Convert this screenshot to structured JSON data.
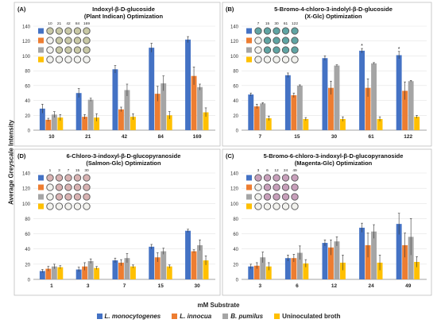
{
  "figure": {
    "ylabel": "Average Greyscale Intensity",
    "xlabel": "mM Substrate"
  },
  "legend": [
    {
      "name": "L. monocytogenes",
      "color": "#4472c4",
      "italic": true
    },
    {
      "name": "L. innocua",
      "color": "#ed7d31",
      "italic": true
    },
    {
      "name": "B. pumilus",
      "color": "#a5a5a5",
      "italic": true
    },
    {
      "name": "Uninoculated broth",
      "color": "#ffc000",
      "italic": false
    }
  ],
  "chart_data": [
    {
      "type": "bar",
      "panel": "(A)",
      "title": "Indoxyl-β-D-glucoside",
      "subtitle": "(Plant Indican) Optimization",
      "categories": [
        "10",
        "21",
        "42",
        "84",
        "169"
      ],
      "ylim": [
        0,
        140
      ],
      "yticks": [
        0,
        20,
        40,
        60,
        80,
        100,
        120,
        140
      ],
      "series": [
        {
          "name": "L. monocytogenes",
          "values": [
            29,
            50,
            82,
            111,
            122
          ],
          "errors": [
            6,
            6,
            5,
            6,
            4
          ]
        },
        {
          "name": "L. innocua",
          "values": [
            14,
            18,
            28,
            49,
            73
          ],
          "errors": [
            2,
            3,
            3,
            10,
            12
          ]
        },
        {
          "name": "B. pumilus",
          "values": [
            21,
            41,
            54,
            63,
            58
          ],
          "errors": [
            4,
            2,
            8,
            10,
            4
          ]
        },
        {
          "name": "Uninoculated broth",
          "values": [
            17,
            17,
            18,
            20,
            24
          ],
          "errors": [
            4,
            5,
            4,
            5,
            6
          ]
        }
      ],
      "well_labels": [
        "10",
        "21",
        "42",
        "84",
        "169"
      ],
      "well_color": "#c9c9a6",
      "asterisks": []
    },
    {
      "type": "bar",
      "panel": "(B)",
      "title": "5-Bromo-4-chloro-3-indolyl-β-D-glucoside",
      "subtitle": "(X-Glc) Optimization",
      "categories": [
        "7",
        "15",
        "30",
        "61",
        "122"
      ],
      "ylim": [
        0,
        140
      ],
      "yticks": [
        0,
        20,
        40,
        60,
        80,
        100,
        120,
        140
      ],
      "series": [
        {
          "name": "L. monocytogenes",
          "values": [
            48,
            74,
            97,
            107,
            101
          ],
          "errors": [
            2,
            3,
            3,
            3,
            5
          ]
        },
        {
          "name": "L. innocua",
          "values": [
            32,
            47,
            57,
            57,
            53
          ],
          "errors": [
            3,
            3,
            9,
            12,
            12
          ]
        },
        {
          "name": "B. pumilus",
          "values": [
            36,
            60,
            87,
            90,
            66
          ],
          "errors": [
            1,
            1,
            1,
            1,
            1
          ]
        },
        {
          "name": "Uninoculated broth",
          "values": [
            16,
            15,
            15,
            15,
            18
          ],
          "errors": [
            3,
            2,
            3,
            3,
            2
          ]
        }
      ],
      "well_labels": [
        "7",
        "15",
        "30",
        "61",
        "122"
      ],
      "well_color": "#5fa4a3",
      "asterisks": [
        3,
        4
      ]
    },
    {
      "type": "bar",
      "panel": "(D)",
      "title": "6-Chloro-3-indoxyl-β-D-glucopyranoside",
      "subtitle": "(Salmon-Glc) Optimization",
      "categories": [
        "1",
        "3",
        "7",
        "15",
        "30"
      ],
      "ylim": [
        0,
        140
      ],
      "yticks": [
        0,
        20,
        40,
        60,
        80,
        100,
        120,
        140
      ],
      "series": [
        {
          "name": "L. monocytogenes",
          "values": [
            11,
            13,
            25,
            43,
            64
          ],
          "errors": [
            2,
            3,
            3,
            3,
            2
          ]
        },
        {
          "name": "L. innocua",
          "values": [
            14,
            17,
            22,
            29,
            37
          ],
          "errors": [
            3,
            5,
            4,
            6,
            2
          ]
        },
        {
          "name": "B. pumilus",
          "values": [
            17,
            24,
            28,
            37,
            45
          ],
          "errors": [
            3,
            3,
            6,
            4,
            7
          ]
        },
        {
          "name": "Uninoculated broth",
          "values": [
            16,
            15,
            17,
            17,
            25
          ],
          "errors": [
            2,
            2,
            2,
            2,
            6
          ]
        }
      ],
      "well_labels": [
        "1",
        "3",
        "7",
        "15",
        "30"
      ],
      "well_color": "#d9b3b3",
      "asterisks": []
    },
    {
      "type": "bar",
      "panel": "(C)",
      "title": "5-Bromo-6-chloro-3-indoxyl-β-D-glucopyranoside",
      "subtitle": "(Magenta-Glc) Optimization",
      "categories": [
        "3",
        "6",
        "12",
        "24",
        "49"
      ],
      "ylim": [
        0,
        140
      ],
      "yticks": [
        0,
        20,
        40,
        60,
        80,
        100,
        120,
        140
      ],
      "series": [
        {
          "name": "L. monocytogenes",
          "values": [
            17,
            28,
            48,
            68,
            73
          ],
          "errors": [
            3,
            4,
            4,
            6,
            14
          ]
        },
        {
          "name": "L. innocua",
          "values": [
            18,
            28,
            42,
            45,
            45
          ],
          "errors": [
            4,
            5,
            10,
            16,
            16
          ]
        },
        {
          "name": "B. pumilus",
          "values": [
            29,
            35,
            50,
            63,
            56
          ],
          "errors": [
            7,
            9,
            6,
            9,
            24
          ]
        },
        {
          "name": "Uninoculated broth",
          "values": [
            17,
            21,
            22,
            22,
            23
          ],
          "errors": [
            5,
            5,
            10,
            10,
            7
          ]
        }
      ],
      "well_labels": [
        "3",
        "6",
        "12",
        "24",
        "49"
      ],
      "well_color": "#c8a0bb",
      "asterisks": []
    }
  ]
}
